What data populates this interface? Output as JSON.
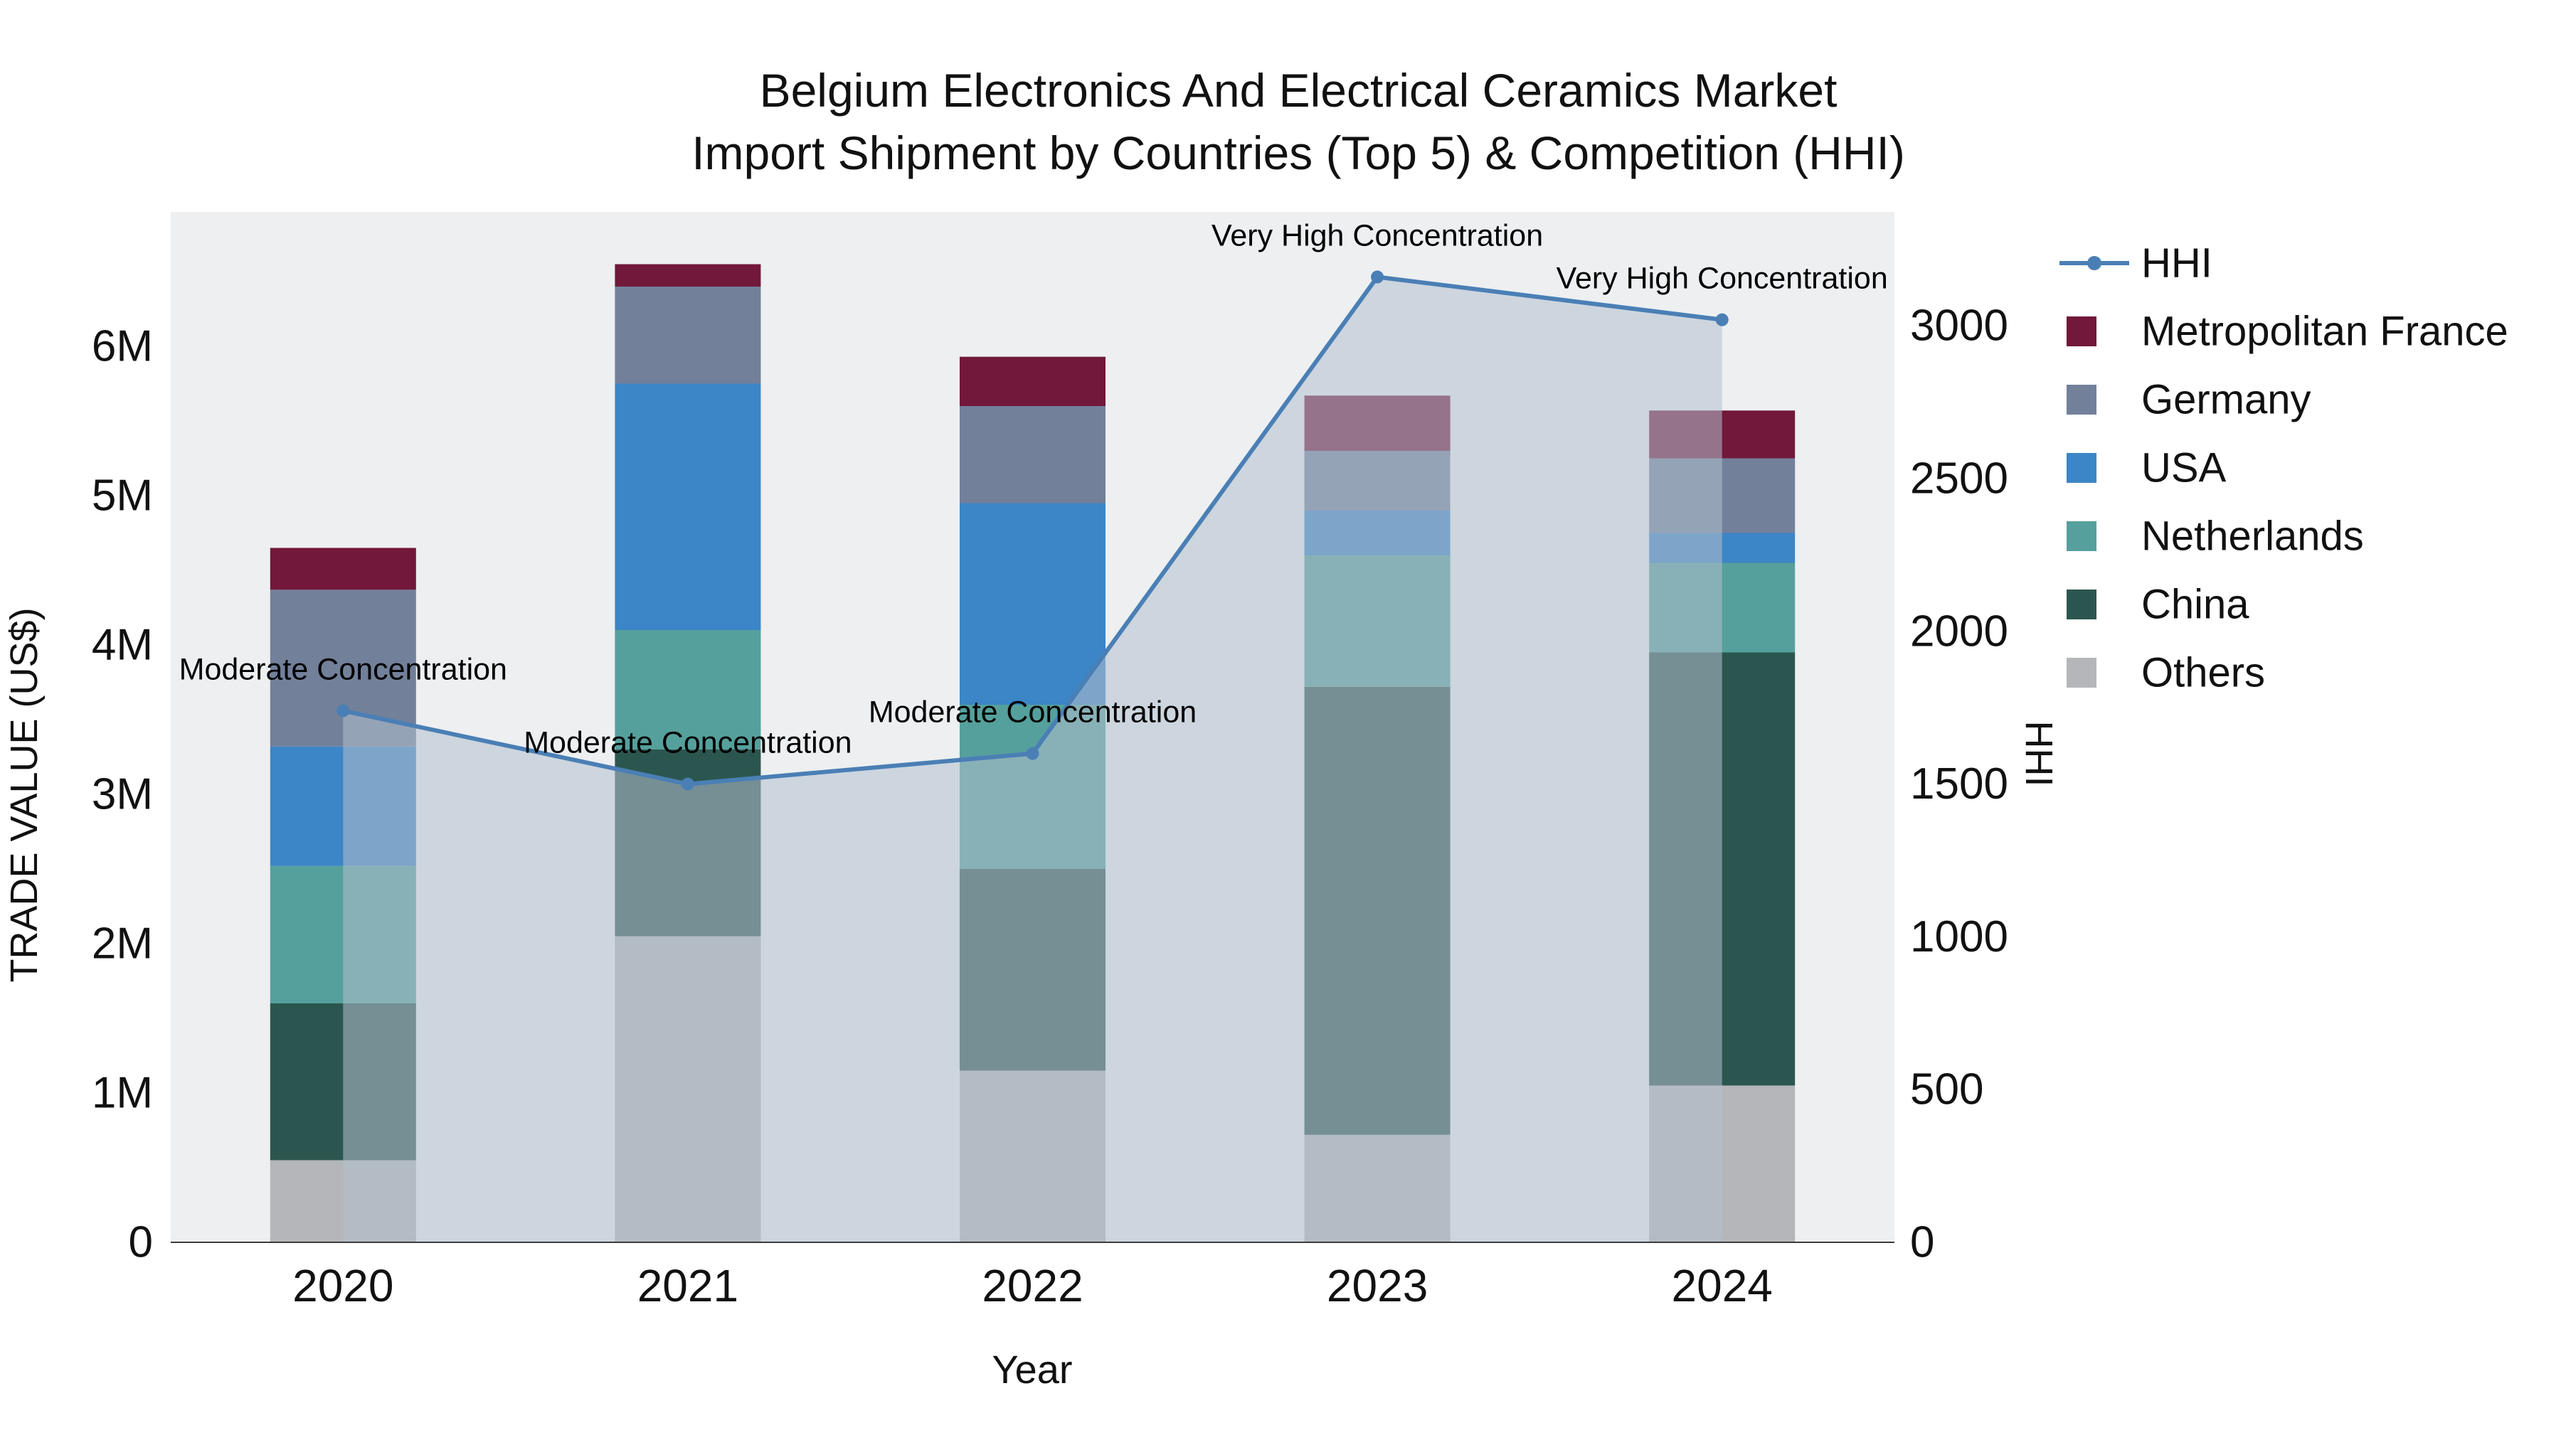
{
  "chart_data": {
    "type": "bar+line",
    "title": "Belgium Electronics And Electrical Ceramics Market",
    "subtitle": "Import Shipment by Countries (Top 5) & Competition (HHI)",
    "xlabel": "Year",
    "ylabel_left": "TRADE VALUE (US$)",
    "ylabel_right": "HHI",
    "categories": [
      "2020",
      "2021",
      "2022",
      "2023",
      "2024"
    ],
    "bar_unit": "M US$",
    "bar_series": [
      {
        "name": "Others",
        "color": "#b4b6b9",
        "values": [
          0.55,
          2.05,
          1.15,
          0.72,
          1.05
        ]
      },
      {
        "name": "China",
        "color": "#2b564f",
        "values": [
          1.05,
          1.25,
          1.35,
          3.0,
          2.9
        ]
      },
      {
        "name": "Netherlands",
        "color": "#55a09c",
        "values": [
          0.92,
          0.8,
          1.1,
          0.88,
          0.6
        ]
      },
      {
        "name": "USA",
        "color": "#3c85c6",
        "values": [
          0.8,
          1.65,
          1.35,
          0.3,
          0.2
        ]
      },
      {
        "name": "Germany",
        "color": "#72809a",
        "values": [
          1.05,
          0.65,
          0.65,
          0.4,
          0.5
        ]
      },
      {
        "name": "Metropolitan France",
        "color": "#72183a",
        "values": [
          0.28,
          0.15,
          0.33,
          0.37,
          0.32
        ]
      }
    ],
    "line_series": {
      "name": "HHI",
      "color": "#4a7fb5",
      "area_fill": "rgba(178,192,206,0.55)",
      "values": [
        1740,
        1500,
        1600,
        3160,
        3020
      ]
    },
    "annotations": [
      "Moderate Concentration",
      "Moderate Concentration",
      "Moderate Concentration",
      "Very High Concentration",
      "Very High Concentration"
    ],
    "left_axis": {
      "tick_labels": [
        "0",
        "1M",
        "2M",
        "3M",
        "4M",
        "5M",
        "6M"
      ],
      "tick_values": [
        0,
        1,
        2,
        3,
        4,
        5,
        6
      ],
      "range": [
        0,
        6.9
      ]
    },
    "right_axis": {
      "tick_labels": [
        "0",
        "500",
        "1000",
        "1500",
        "2000",
        "2500",
        "3000"
      ],
      "tick_values": [
        0,
        500,
        1000,
        1500,
        2000,
        2500,
        3000
      ],
      "range": [
        0,
        3373
      ]
    },
    "legend": [
      {
        "label": "HHI",
        "marker": "line",
        "color": "#4a7fb5"
      },
      {
        "label": "Metropolitan France",
        "marker": "square",
        "color": "#72183a"
      },
      {
        "label": "Germany",
        "marker": "square",
        "color": "#72809a"
      },
      {
        "label": "USA",
        "marker": "square",
        "color": "#3c85c6"
      },
      {
        "label": "Netherlands",
        "marker": "square",
        "color": "#55a09c"
      },
      {
        "label": "China",
        "marker": "square",
        "color": "#2b564f"
      },
      {
        "label": "Others",
        "marker": "square",
        "color": "#b4b6b9"
      }
    ],
    "plot_bg": "#edeff1"
  }
}
